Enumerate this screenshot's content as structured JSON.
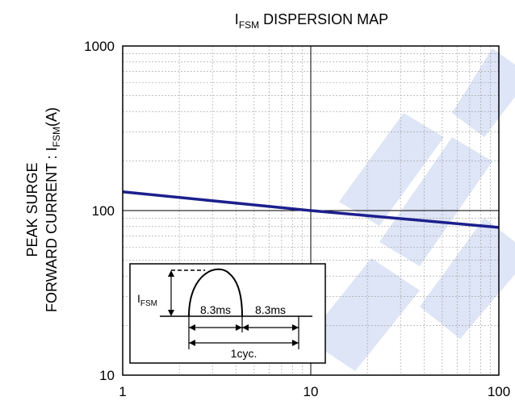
{
  "chart_data": {
    "type": "line",
    "title_main": "I",
    "title_sub": "FSM",
    "title_rest": " DISPERSION MAP",
    "ylabel_line1": "PEAK SURGE",
    "ylabel_line2_main": "FORWARD CURRENT : I",
    "ylabel_line2_sub": "FSM",
    "ylabel_line2_rest": "(A)",
    "x_scale": "log",
    "y_scale": "log",
    "xlim": [
      1,
      100
    ],
    "ylim": [
      10,
      1000
    ],
    "x_ticks": [
      1,
      10,
      100
    ],
    "x_tick_labels": [
      "1",
      "10",
      "100"
    ],
    "y_ticks": [
      10,
      100,
      1000
    ],
    "y_tick_labels": [
      "10",
      "100",
      "1000"
    ],
    "grid": true,
    "series": [
      {
        "color": "#1c1f8c",
        "x": [
          1,
          10,
          100
        ],
        "y": [
          130,
          100,
          79
        ]
      }
    ],
    "inset": {
      "ifsm_main": "I",
      "ifsm_sub": "FSM",
      "half_cycle_1": "8.3ms",
      "half_cycle_2": "8.3ms",
      "cycle": "1cyc."
    }
  }
}
